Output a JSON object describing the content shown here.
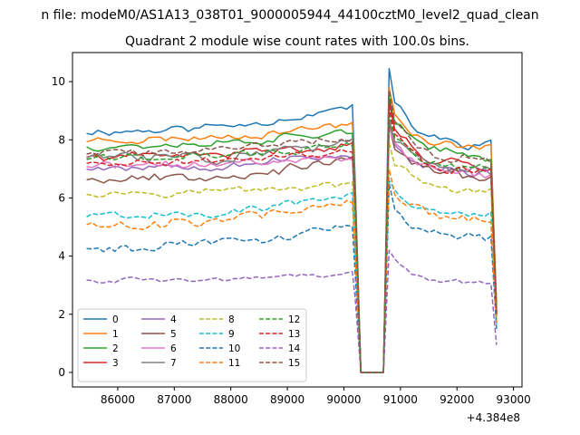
{
  "figure": {
    "suptitle": "n file: modeM0/AS1A13_038T01_9000005944_44100cztM0_level2_quad_clean"
  },
  "chart_data": {
    "type": "line",
    "title": "Quadrant 2 module wise count rates with 100.0s bins.",
    "xlabel": "",
    "ylabel": "",
    "x_offset_label": "+4.384e8",
    "xlim": [
      85200,
      93150
    ],
    "ylim": [
      -0.5,
      11
    ],
    "x_ticks": [
      86000,
      87000,
      88000,
      89000,
      90000,
      91000,
      92000,
      93000
    ],
    "x_tick_labels": [
      "86000",
      "87000",
      "88000",
      "89000",
      "90000",
      "91000",
      "92000",
      "93000"
    ],
    "y_ticks": [
      0,
      2,
      4,
      6,
      8,
      10
    ],
    "y_tick_labels": [
      "0",
      "2",
      "4",
      "6",
      "8",
      "10"
    ],
    "grid": false,
    "legend": {
      "placement": "lower-left",
      "columns": 4
    },
    "segments": {
      "first": {
        "x_start": 85450,
        "x_end": 90100,
        "step": 100
      },
      "gap": [
        90300,
        90700
      ],
      "second": {
        "x_start": 90800,
        "x_end": 92700,
        "step": 100
      }
    },
    "series": [
      {
        "name": "0",
        "color": "#1f77b4",
        "dash": "solid",
        "level1": 8.3,
        "level2": 8.0,
        "peak": 10.45,
        "end": 2.0,
        "trend": 0.9,
        "noise": 0.22,
        "seed": 11
      },
      {
        "name": "1",
        "color": "#ff7f0e",
        "dash": "solid",
        "level1": 8.0,
        "level2": 7.9,
        "peak": 9.8,
        "end": 2.4,
        "trend": 0.6,
        "noise": 0.2,
        "seed": 23
      },
      {
        "name": "2",
        "color": "#2ca02c",
        "dash": "solid",
        "level1": 7.8,
        "level2": 7.6,
        "peak": 9.5,
        "end": 2.2,
        "trend": 0.6,
        "noise": 0.22,
        "seed": 37
      },
      {
        "name": "3",
        "color": "#d62728",
        "dash": "solid",
        "level1": 7.4,
        "level2": 7.3,
        "peak": 9.3,
        "end": 2.1,
        "trend": 0.5,
        "noise": 0.22,
        "seed": 41
      },
      {
        "name": "4",
        "color": "#9467bd",
        "dash": "solid",
        "level1": 7.1,
        "level2": 7.0,
        "peak": 8.6,
        "end": 2.0,
        "trend": 0.4,
        "noise": 0.25,
        "seed": 53
      },
      {
        "name": "5",
        "color": "#8c564b",
        "dash": "solid",
        "level1": 6.7,
        "level2": 6.9,
        "peak": 8.5,
        "end": 1.9,
        "trend": 0.6,
        "noise": 0.25,
        "seed": 67
      },
      {
        "name": "6",
        "color": "#e377c2",
        "dash": "solid",
        "level1": 7.1,
        "level2": 7.0,
        "peak": 8.4,
        "end": 2.0,
        "trend": 0.4,
        "noise": 0.22,
        "seed": 71
      },
      {
        "name": "7",
        "color": "#7f7f7f",
        "dash": "solid",
        "level1": 7.4,
        "level2": 7.1,
        "peak": 8.7,
        "end": 2.1,
        "trend": 0.5,
        "noise": 0.3,
        "seed": 83
      },
      {
        "name": "8",
        "color": "#bcbd22",
        "dash": "dashed",
        "level1": 6.2,
        "level2": 6.4,
        "peak": 7.9,
        "end": 1.8,
        "trend": 0.3,
        "noise": 0.18,
        "seed": 97
      },
      {
        "name": "9",
        "color": "#17becf",
        "dash": "dashed",
        "level1": 5.4,
        "level2": 5.6,
        "peak": 6.6,
        "end": 1.6,
        "trend": 0.7,
        "noise": 0.2,
        "seed": 101
      },
      {
        "name": "10",
        "color": "#1f77b4",
        "dash": "dashed",
        "level1": 4.3,
        "level2": 4.8,
        "peak": 6.5,
        "end": 1.5,
        "trend": 0.8,
        "noise": 0.22,
        "seed": 113
      },
      {
        "name": "11",
        "color": "#ff7f0e",
        "dash": "dashed",
        "level1": 5.1,
        "level2": 5.4,
        "peak": 7.0,
        "end": 1.7,
        "trend": 0.9,
        "noise": 0.28,
        "seed": 127
      },
      {
        "name": "12",
        "color": "#2ca02c",
        "dash": "dashed",
        "level1": 7.4,
        "level2": 7.2,
        "peak": 8.9,
        "end": 2.1,
        "trend": 0.4,
        "noise": 0.2,
        "seed": 131
      },
      {
        "name": "13",
        "color": "#d62728",
        "dash": "dashed",
        "level1": 7.2,
        "level2": 7.1,
        "peak": 9.1,
        "end": 2.0,
        "trend": 0.5,
        "noise": 0.2,
        "seed": 149
      },
      {
        "name": "14",
        "color": "#9467bd",
        "dash": "dashed",
        "level1": 3.2,
        "level2": 3.2,
        "peak": 4.2,
        "end": 0.95,
        "trend": 0.2,
        "noise": 0.13,
        "seed": 157
      },
      {
        "name": "15",
        "color": "#8c564b",
        "dash": "dashed",
        "level1": 7.6,
        "level2": 7.5,
        "peak": 9.7,
        "end": 2.2,
        "trend": 0.5,
        "noise": 0.22,
        "seed": 163
      }
    ]
  }
}
